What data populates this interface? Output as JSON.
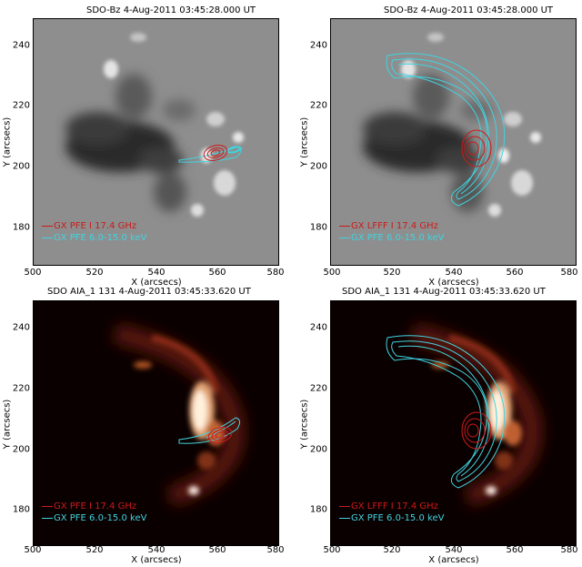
{
  "colors": {
    "red_contour": "#cc1a1a",
    "cyan_contour": "#3fd4e0"
  },
  "panels": [
    {
      "title": "SDO-Bz   4-Aug-2011 03:45:28.000  UT",
      "image": "magnetogram",
      "xlabel": "X (arcsecs)",
      "ylabel": "Y (arcsecs)",
      "xticks": [
        "500",
        "520",
        "540",
        "560",
        "580"
      ],
      "yticks": [
        "180",
        "200",
        "220",
        "240"
      ],
      "legend": [
        {
          "label": "GX PFE I 17.4 GHz",
          "color": "#cc1a1a"
        },
        {
          "label": "GX PFE 6.0-15.0 keV",
          "color": "#3fd4e0"
        }
      ]
    },
    {
      "title": "SDO-Bz   4-Aug-2011 03:45:28.000  UT",
      "image": "magnetogram",
      "xlabel": "X (arcsecs)",
      "ylabel": "Y (arcsecs)",
      "xticks": [
        "500",
        "520",
        "540",
        "560",
        "580"
      ],
      "yticks": [
        "180",
        "200",
        "220",
        "240"
      ],
      "legend": [
        {
          "label": "GX LFFF I 17.4 GHz",
          "color": "#cc1a1a"
        },
        {
          "label": "GX PFE 6.0-15.0 keV",
          "color": "#3fd4e0"
        }
      ]
    },
    {
      "title": "SDO AIA_1 131   4-Aug-2011 03:45:33.620  UT",
      "image": "aia131",
      "xlabel": "X (arcsecs)",
      "ylabel": "Y (arcsecs)",
      "xticks": [
        "500",
        "520",
        "540",
        "560",
        "580"
      ],
      "yticks": [
        "180",
        "200",
        "220",
        "240"
      ],
      "legend": [
        {
          "label": "GX PFE I 17.4 GHz",
          "color": "#cc1a1a"
        },
        {
          "label": "GX PFE 6.0-15.0 keV",
          "color": "#3fd4e0"
        }
      ]
    },
    {
      "title": "SDO AIA_1 131   4-Aug-2011 03:45:33.620  UT",
      "image": "aia131",
      "xlabel": "X (arcsecs)",
      "ylabel": "Y (arcsecs)",
      "xticks": [
        "500",
        "520",
        "540",
        "560",
        "580"
      ],
      "yticks": [
        "180",
        "200",
        "220",
        "240"
      ],
      "legend": [
        {
          "label": "GX LFFF I 17.4 GHz",
          "color": "#cc1a1a"
        },
        {
          "label": "GX PFE 6.0-15.0 keV",
          "color": "#3fd4e0"
        }
      ]
    }
  ]
}
